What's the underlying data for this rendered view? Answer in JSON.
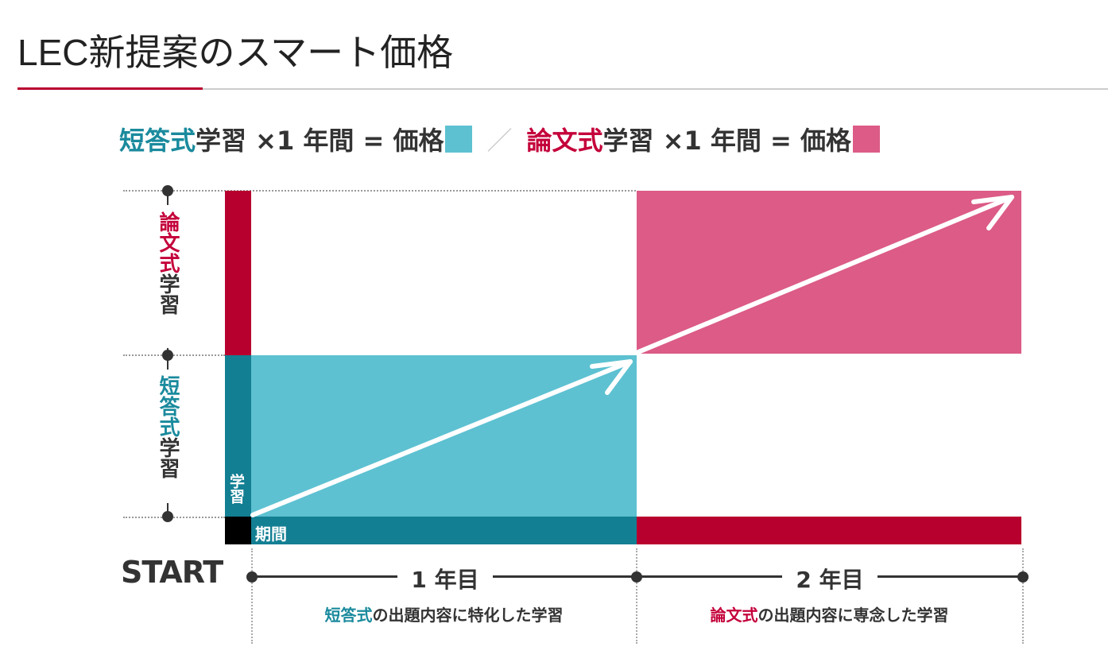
{
  "title": "LEC新提案のスマート価格",
  "formula": {
    "short": {
      "highlight": "短答式",
      "rest": "学習 ×1 年間 = 価格"
    },
    "separator": "／",
    "essay": {
      "highlight": "論文式",
      "rest": "学習 ×1 年間 = 価格"
    }
  },
  "axis": {
    "essay_label": {
      "highlight": "論文式",
      "rest": "学習"
    },
    "short_label": {
      "highlight": "短答式",
      "rest": "学習"
    },
    "study_label": "学習",
    "period_label": "期間"
  },
  "timeline": {
    "start": "START",
    "year1": "1 年目",
    "year2": "2 年目",
    "year1_desc": {
      "highlight": "短答式",
      "rest": "の出題内容に特化した学習"
    },
    "year2_desc": {
      "highlight": "論文式",
      "rest": "の出題内容に専念した学習"
    }
  },
  "colors": {
    "short_light": "#5dc1d1",
    "short_dark": "#137f93",
    "essay_light": "#dc5b87",
    "essay_dark": "#b8002f"
  }
}
